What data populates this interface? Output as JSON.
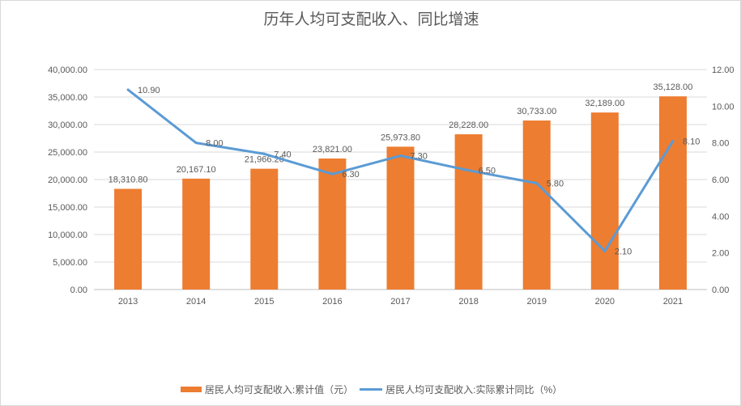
{
  "chart_data": {
    "type": "bar+line",
    "title": "历年人均可支配收入、同比增速",
    "categories": [
      "2013",
      "2014",
      "2015",
      "2016",
      "2017",
      "2018",
      "2019",
      "2020",
      "2021"
    ],
    "series": [
      {
        "name": "居民人均可支配收入:累计值（元）",
        "type": "bar",
        "axis": "left",
        "color": "#ED7D31",
        "values": [
          18310.8,
          20167.1,
          21966.2,
          23821.0,
          25973.8,
          28228.0,
          30733.0,
          32189.0,
          35128.0
        ],
        "labels": [
          "18,310.80",
          "20,167.10",
          "21,966.20",
          "23,821.00",
          "25,973.80",
          "28,228.00",
          "30,733.00",
          "32,189.00",
          "35,128.00"
        ]
      },
      {
        "name": "居民人均可支配收入:实际累计同比（%）",
        "type": "line",
        "axis": "right",
        "color": "#5B9BD5",
        "values": [
          10.9,
          8.0,
          7.4,
          6.3,
          7.3,
          6.5,
          5.8,
          2.1,
          8.1
        ],
        "labels": [
          "10.90",
          "8.00",
          "7.40",
          "6.30",
          "7.30",
          "6.50",
          "5.80",
          "2.10",
          "8.10"
        ]
      }
    ],
    "ylim_left": [
      0,
      40000
    ],
    "yticks_left": [
      "0.00",
      "5,000.00",
      "10,000.00",
      "15,000.00",
      "20,000.00",
      "25,000.00",
      "30,000.00",
      "35,000.00",
      "40,000.00"
    ],
    "ylim_right": [
      0,
      12
    ],
    "yticks_right": [
      "0.00",
      "2.00",
      "4.00",
      "6.00",
      "8.00",
      "10.00",
      "12.00"
    ],
    "grid": true,
    "legend": "bottom"
  }
}
